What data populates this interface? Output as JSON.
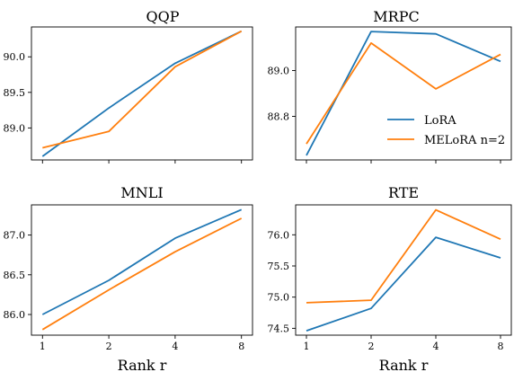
{
  "colors": {
    "lora": "#1f77b4",
    "melora": "#ff7f0e"
  },
  "legend": {
    "placement": "lower-right",
    "panel": 1
  },
  "chart_data": [
    {
      "type": "line",
      "title": "QQP",
      "categories": [
        "1",
        "2",
        "4",
        "8"
      ],
      "xlabel": "",
      "ylim": [
        88.55,
        90.42
      ],
      "yticks": [
        "89.0",
        "89.5",
        "90.0"
      ],
      "show_xticklabels": false,
      "series": [
        {
          "name": "LoRA",
          "values": [
            88.6,
            89.28,
            89.91,
            90.36
          ]
        },
        {
          "name": "MELoRA n=2",
          "values": [
            88.72,
            88.95,
            89.86,
            90.36
          ]
        }
      ]
    },
    {
      "type": "line",
      "title": "MRPC",
      "categories": [
        "1",
        "2",
        "4",
        "8"
      ],
      "xlabel": "",
      "ylim": [
        88.61,
        89.19
      ],
      "yticks": [
        "88.8",
        "89.0"
      ],
      "show_xticklabels": false,
      "series": [
        {
          "name": "LoRA",
          "values": [
            88.63,
            89.17,
            89.16,
            89.04
          ]
        },
        {
          "name": "MELoRA n=2",
          "values": [
            88.68,
            89.12,
            88.92,
            89.07
          ]
        }
      ]
    },
    {
      "type": "line",
      "title": "MNLI",
      "categories": [
        "1",
        "2",
        "4",
        "8"
      ],
      "xlabel": "Rank r",
      "ylim": [
        85.74,
        87.38
      ],
      "yticks": [
        "86.0",
        "86.5",
        "87.0"
      ],
      "show_xticklabels": true,
      "series": [
        {
          "name": "LoRA",
          "values": [
            86.0,
            86.43,
            86.96,
            87.32
          ]
        },
        {
          "name": "MELoRA n=2",
          "values": [
            85.81,
            86.31,
            86.79,
            87.21
          ]
        }
      ]
    },
    {
      "type": "line",
      "title": "RTE",
      "categories": [
        "1",
        "2",
        "4",
        "8"
      ],
      "xlabel": "Rank r",
      "ylim": [
        74.39,
        76.48
      ],
      "yticks": [
        "74.5",
        "75.0",
        "75.5",
        "76.0"
      ],
      "show_xticklabels": true,
      "series": [
        {
          "name": "LoRA",
          "values": [
            74.46,
            74.82,
            75.96,
            75.63
          ]
        },
        {
          "name": "MELoRA n=2",
          "values": [
            74.91,
            74.95,
            76.4,
            75.93
          ]
        }
      ]
    }
  ]
}
